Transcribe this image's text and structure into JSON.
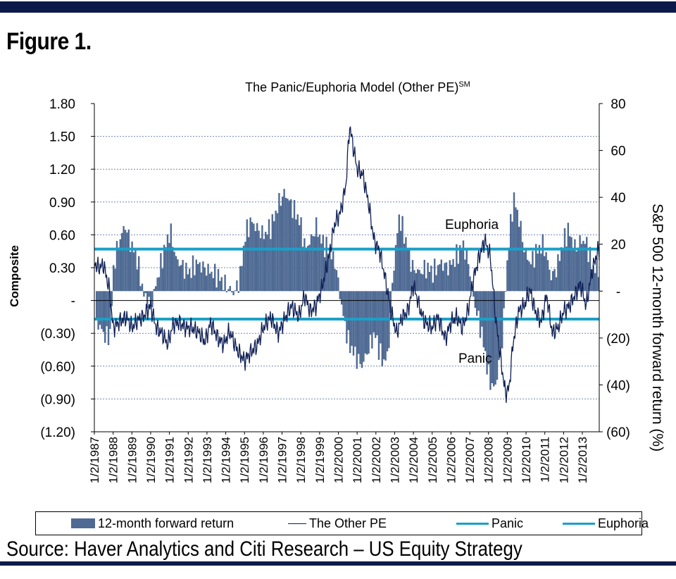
{
  "figure_label": "Figure 1.",
  "source_text": "Source: Haver Analytics and Citi Research – US Equity Strategy",
  "colors": {
    "bar_fill": "#4f6a93",
    "pe_line": "#0f1f55",
    "threshold": "#1aa0c8",
    "frame_bar": "#0c1a4a"
  },
  "chart_data": {
    "type": "area",
    "title": "The Panic/Euphoria Model (Other PE)",
    "title_superscript": "SM",
    "ylabel_left": "Composite",
    "ylabel_right": "S&P 500 12-month forward return (%)",
    "y_left": {
      "range": [
        -1.2,
        1.8
      ],
      "ticks": [
        1.8,
        1.5,
        1.2,
        0.9,
        0.6,
        0.3,
        0,
        -0.3,
        -0.6,
        -0.9,
        -1.2
      ],
      "tick_labels": [
        "1.80",
        "1.50",
        "1.20",
        "0.90",
        "0.60",
        "0.30",
        "-",
        "(0.30)",
        "(0.60)",
        "(0.90)",
        "(1.20)"
      ]
    },
    "y_right": {
      "range": [
        -60,
        80
      ],
      "ticks": [
        80,
        60,
        40,
        20,
        0,
        -20,
        -40,
        -60
      ],
      "tick_labels": [
        "80",
        "60",
        "40",
        "20",
        "-",
        "(20)",
        "(40)",
        "(60)"
      ]
    },
    "x_range": [
      1987.0,
      2013.9
    ],
    "x_tick_labels": [
      "1/2/1987",
      "1/2/1988",
      "1/2/1989",
      "1/2/1990",
      "1/2/1991",
      "1/2/1992",
      "1/2/1993",
      "1/2/1994",
      "1/2/1995",
      "1/2/1996",
      "1/2/1997",
      "1/2/1998",
      "1/2/1999",
      "1/2/2000",
      "1/2/2001",
      "1/2/2002",
      "1/2/2003",
      "1/2/2004",
      "1/2/2005",
      "1/2/2006",
      "1/2/2007",
      "1/2/2008",
      "1/2/2009",
      "1/2/2010",
      "1/2/2011",
      "1/2/2012",
      "1/2/2013"
    ],
    "grid": true,
    "legend_position": "bottom",
    "panic_level": -0.17,
    "euphoria_level": 0.47,
    "annotations": [
      "Euphoria",
      "Panic"
    ],
    "series": [
      {
        "name": "12-month forward return",
        "axis": "right",
        "style": "bar",
        "points": [
          [
            1987.0,
            -12
          ],
          [
            1987.3,
            -16
          ],
          [
            1987.6,
            -20
          ],
          [
            1987.8,
            -18
          ],
          [
            1988.0,
            12
          ],
          [
            1988.3,
            22
          ],
          [
            1988.6,
            28
          ],
          [
            1988.9,
            20
          ],
          [
            1989.2,
            15
          ],
          [
            1989.6,
            -2
          ],
          [
            1990.0,
            -6
          ],
          [
            1990.3,
            5
          ],
          [
            1990.7,
            18
          ],
          [
            1991.0,
            26
          ],
          [
            1991.3,
            14
          ],
          [
            1991.7,
            10
          ],
          [
            1992.0,
            8
          ],
          [
            1992.4,
            12
          ],
          [
            1992.8,
            10
          ],
          [
            1993.2,
            8
          ],
          [
            1993.6,
            6
          ],
          [
            1994.0,
            2
          ],
          [
            1994.4,
            -1
          ],
          [
            1994.7,
            5
          ],
          [
            1995.0,
            24
          ],
          [
            1995.3,
            30
          ],
          [
            1995.7,
            26
          ],
          [
            1996.0,
            24
          ],
          [
            1996.4,
            28
          ],
          [
            1996.8,
            38
          ],
          [
            1997.1,
            42
          ],
          [
            1997.5,
            36
          ],
          [
            1997.9,
            30
          ],
          [
            1998.2,
            18
          ],
          [
            1998.5,
            22
          ],
          [
            1998.8,
            28
          ],
          [
            1999.0,
            22
          ],
          [
            1999.4,
            18
          ],
          [
            1999.8,
            12
          ],
          [
            2000.2,
            -10
          ],
          [
            2000.5,
            -22
          ],
          [
            2000.9,
            -28
          ],
          [
            2001.2,
            -32
          ],
          [
            2001.6,
            -24
          ],
          [
            2001.9,
            -18
          ],
          [
            2002.3,
            -30
          ],
          [
            2002.6,
            -28
          ],
          [
            2002.9,
            10
          ],
          [
            2003.2,
            32
          ],
          [
            2003.6,
            20
          ],
          [
            2003.9,
            10
          ],
          [
            2004.3,
            8
          ],
          [
            2004.7,
            10
          ],
          [
            2005.0,
            8
          ],
          [
            2005.4,
            12
          ],
          [
            2005.8,
            10
          ],
          [
            2006.2,
            14
          ],
          [
            2006.6,
            20
          ],
          [
            2006.9,
            12
          ],
          [
            2007.2,
            -5
          ],
          [
            2007.6,
            -18
          ],
          [
            2008.0,
            -38
          ],
          [
            2008.3,
            -42
          ],
          [
            2008.7,
            -20
          ],
          [
            2009.0,
            18
          ],
          [
            2009.3,
            40
          ],
          [
            2009.6,
            30
          ],
          [
            2009.9,
            16
          ],
          [
            2010.2,
            12
          ],
          [
            2010.6,
            18
          ],
          [
            2010.9,
            20
          ],
          [
            2011.3,
            6
          ],
          [
            2011.6,
            10
          ],
          [
            2011.9,
            20
          ],
          [
            2012.2,
            26
          ],
          [
            2012.6,
            18
          ],
          [
            2012.9,
            22
          ],
          [
            2013.2,
            20
          ],
          [
            2013.5,
            10
          ],
          [
            2013.8,
            10
          ]
        ]
      },
      {
        "name": "The Other PE",
        "axis": "left",
        "style": "line",
        "points": [
          [
            1987.0,
            0.35
          ],
          [
            1987.2,
            0.3
          ],
          [
            1987.5,
            0.32
          ],
          [
            1987.8,
            0.1
          ],
          [
            1988.0,
            -0.25
          ],
          [
            1988.3,
            -0.2
          ],
          [
            1988.7,
            -0.15
          ],
          [
            1989.0,
            -0.25
          ],
          [
            1989.3,
            -0.18
          ],
          [
            1989.6,
            -0.15
          ],
          [
            1990.0,
            -0.05
          ],
          [
            1990.3,
            -0.25
          ],
          [
            1990.6,
            -0.3
          ],
          [
            1990.9,
            -0.4
          ],
          [
            1991.2,
            -0.22
          ],
          [
            1991.5,
            -0.2
          ],
          [
            1991.9,
            -0.25
          ],
          [
            1992.2,
            -0.25
          ],
          [
            1992.6,
            -0.3
          ],
          [
            1992.9,
            -0.38
          ],
          [
            1993.2,
            -0.2
          ],
          [
            1993.6,
            -0.35
          ],
          [
            1993.9,
            -0.4
          ],
          [
            1994.2,
            -0.28
          ],
          [
            1994.6,
            -0.45
          ],
          [
            1995.0,
            -0.55
          ],
          [
            1995.3,
            -0.48
          ],
          [
            1995.7,
            -0.4
          ],
          [
            1996.0,
            -0.25
          ],
          [
            1996.4,
            -0.15
          ],
          [
            1996.8,
            -0.3
          ],
          [
            1997.1,
            -0.18
          ],
          [
            1997.5,
            -0.05
          ],
          [
            1997.9,
            -0.15
          ],
          [
            1998.2,
            0.05
          ],
          [
            1998.5,
            -0.1
          ],
          [
            1998.8,
            -0.05
          ],
          [
            1999.1,
            0.1
          ],
          [
            1999.5,
            0.4
          ],
          [
            1999.8,
            0.7
          ],
          [
            2000.1,
            0.8
          ],
          [
            2000.4,
            1.05
          ],
          [
            2000.6,
            1.6
          ],
          [
            2000.8,
            1.4
          ],
          [
            2001.0,
            1.2
          ],
          [
            2001.3,
            1.15
          ],
          [
            2001.6,
            0.9
          ],
          [
            2001.9,
            0.55
          ],
          [
            2002.2,
            0.45
          ],
          [
            2002.5,
            0.2
          ],
          [
            2002.8,
            -0.1
          ],
          [
            2003.1,
            -0.3
          ],
          [
            2003.4,
            -0.15
          ],
          [
            2003.7,
            -0.1
          ],
          [
            2004.0,
            0.15
          ],
          [
            2004.3,
            -0.05
          ],
          [
            2004.6,
            -0.2
          ],
          [
            2005.0,
            -0.25
          ],
          [
            2005.3,
            -0.15
          ],
          [
            2005.7,
            -0.35
          ],
          [
            2006.0,
            -0.2
          ],
          [
            2006.3,
            -0.15
          ],
          [
            2006.6,
            -0.25
          ],
          [
            2006.9,
            -0.1
          ],
          [
            2007.2,
            0.2
          ],
          [
            2007.5,
            0.4
          ],
          [
            2007.8,
            0.55
          ],
          [
            2008.1,
            0.4
          ],
          [
            2008.4,
            -0.2
          ],
          [
            2008.7,
            -0.6
          ],
          [
            2008.9,
            -0.85
          ],
          [
            2009.1,
            -0.8
          ],
          [
            2009.3,
            -0.4
          ],
          [
            2009.6,
            -0.1
          ],
          [
            2009.9,
            -0.05
          ],
          [
            2010.2,
            0.1
          ],
          [
            2010.5,
            -0.1
          ],
          [
            2010.8,
            -0.2
          ],
          [
            2011.1,
            0.05
          ],
          [
            2011.4,
            -0.3
          ],
          [
            2011.7,
            -0.25
          ],
          [
            2012.0,
            -0.1
          ],
          [
            2012.3,
            -0.05
          ],
          [
            2012.6,
            0.05
          ],
          [
            2012.9,
            0.15
          ],
          [
            2013.2,
            -0.05
          ],
          [
            2013.5,
            0.25
          ],
          [
            2013.8,
            0.45
          ]
        ]
      },
      {
        "name": "Panic",
        "axis": "left",
        "style": "hline",
        "value": -0.17
      },
      {
        "name": "Euphoria",
        "axis": "left",
        "style": "hline",
        "value": 0.47
      }
    ]
  }
}
